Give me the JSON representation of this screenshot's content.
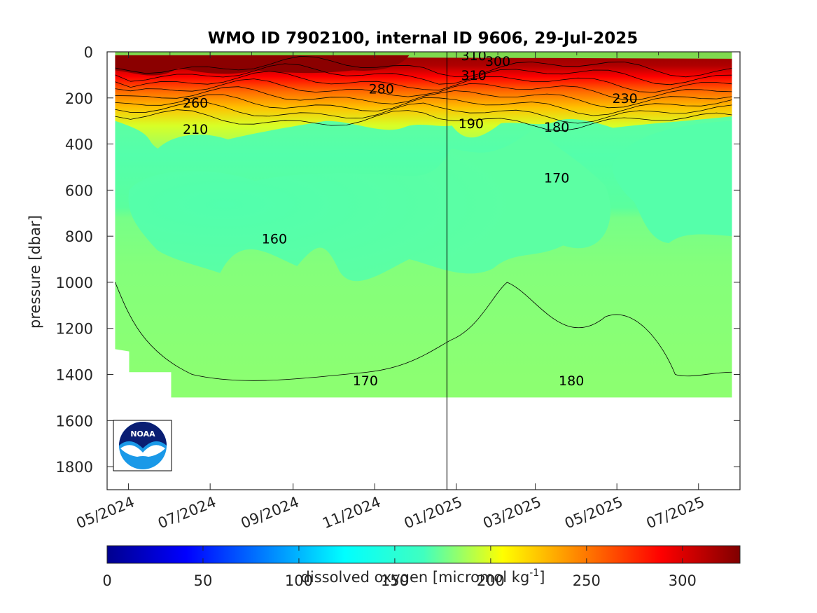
{
  "chart_data": {
    "type": "heatmap",
    "title": "WMO ID 7902100, internal ID 9606, 29-Jul-2025",
    "xlabel": "",
    "ylabel": "pressure [dbar]",
    "y_axis": {
      "ticks": [
        0,
        200,
        400,
        600,
        800,
        1000,
        1200,
        1400,
        1600,
        1800
      ],
      "range": [
        0,
        1900
      ],
      "reversed": true
    },
    "x_axis": {
      "ticks": [
        "05/2024",
        "07/2024",
        "09/2024",
        "11/2024",
        "01/2025",
        "03/2025",
        "05/2025",
        "07/2025"
      ],
      "range": [
        "2024-04-15",
        "2025-08-01"
      ]
    },
    "x_tick_dates": [
      "2024-05-01",
      "2024-07-01",
      "2024-09-01",
      "2024-11-01",
      "2025-01-01",
      "2025-03-01",
      "2025-05-01",
      "2025-07-01"
    ],
    "data_extent": {
      "start": "2024-04-21",
      "end": "2025-07-26",
      "max_pressure": 1500
    },
    "vertical_marker_date": "2024-12-25",
    "colorbar": {
      "label": "dissolved oxygen [micromol kg",
      "label_superscript": "-1",
      "label_end": "]",
      "range": [
        0,
        330
      ],
      "ticks": [
        0,
        50,
        100,
        150,
        200,
        250,
        300
      ],
      "colormap": "jet"
    },
    "contour_labels": [
      {
        "text": "310",
        "date": "2025-01-14",
        "pressure": 15
      },
      {
        "text": "300",
        "date": "2025-02-01",
        "pressure": 40
      },
      {
        "text": "310",
        "date": "2025-01-14",
        "pressure": 100
      },
      {
        "text": "280",
        "date": "2024-11-06",
        "pressure": 160
      },
      {
        "text": "260",
        "date": "2024-06-20",
        "pressure": 220
      },
      {
        "text": "230",
        "date": "2025-05-07",
        "pressure": 200
      },
      {
        "text": "190",
        "date": "2025-01-12",
        "pressure": 310
      },
      {
        "text": "180",
        "date": "2025-03-17",
        "pressure": 325
      },
      {
        "text": "210",
        "date": "2024-06-20",
        "pressure": 335
      },
      {
        "text": "170",
        "date": "2025-03-17",
        "pressure": 545
      },
      {
        "text": "160",
        "date": "2024-08-18",
        "pressure": 810
      },
      {
        "text": "170",
        "date": "2024-10-25",
        "pressure": 1425
      },
      {
        "text": "180",
        "date": "2025-03-28",
        "pressure": 1425
      }
    ],
    "field_description": [
      {
        "pressure_range": [
          0,
          100
        ],
        "oxygen_range": [
          290,
          325
        ]
      },
      {
        "pressure_range": [
          100,
          300
        ],
        "oxygen_range": [
          190,
          290
        ]
      },
      {
        "pressure_range": [
          300,
          500
        ],
        "oxygen_range": [
          165,
          190
        ]
      },
      {
        "pressure_range": [
          500,
          1000
        ],
        "oxygen_range": [
          155,
          170
        ]
      },
      {
        "pressure_range": [
          1000,
          1500
        ],
        "oxygen_range": [
          170,
          185
        ]
      }
    ]
  },
  "logo": {
    "text": "NOAA"
  }
}
